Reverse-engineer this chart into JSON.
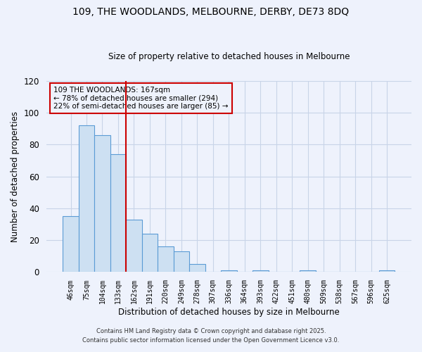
{
  "title": "109, THE WOODLANDS, MELBOURNE, DERBY, DE73 8DQ",
  "subtitle": "Size of property relative to detached houses in Melbourne",
  "xlabel": "Distribution of detached houses by size in Melbourne",
  "ylabel": "Number of detached properties",
  "categories": [
    "46sqm",
    "75sqm",
    "104sqm",
    "133sqm",
    "162sqm",
    "191sqm",
    "220sqm",
    "249sqm",
    "278sqm",
    "307sqm",
    "336sqm",
    "364sqm",
    "393sqm",
    "422sqm",
    "451sqm",
    "480sqm",
    "509sqm",
    "538sqm",
    "567sqm",
    "596sqm",
    "625sqm"
  ],
  "values": [
    35,
    92,
    86,
    74,
    33,
    24,
    16,
    13,
    5,
    0,
    1,
    0,
    1,
    0,
    0,
    1,
    0,
    0,
    0,
    0,
    1
  ],
  "bar_color": "#cde0f2",
  "bar_edge_color": "#5b9bd5",
  "grid_color": "#c8d4e8",
  "background_color": "#eef2fc",
  "vline_color": "#cc0000",
  "annotation_box_text": "109 THE WOODLANDS: 167sqm\n← 78% of detached houses are smaller (294)\n22% of semi-detached houses are larger (85) →",
  "annotation_box_edge_color": "#cc0000",
  "ylim": [
    0,
    120
  ],
  "yticks": [
    0,
    20,
    40,
    60,
    80,
    100,
    120
  ],
  "footer1": "Contains HM Land Registry data © Crown copyright and database right 2025.",
  "footer2": "Contains public sector information licensed under the Open Government Licence v3.0."
}
